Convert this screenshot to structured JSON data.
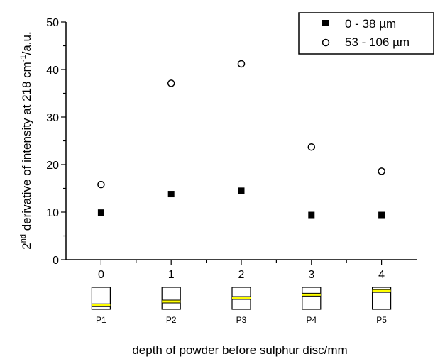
{
  "chart_data": {
    "type": "scatter",
    "xlabel": "depth of powder before sulphur disc/mm",
    "ylabel": {
      "prefix": "2",
      "sup1": "nd",
      "mid": " derivative of intensity at 218 cm",
      "sup2": "-1",
      "suffix": "/a.u."
    },
    "xlim": [
      -0.5,
      4.5
    ],
    "ylim": [
      0,
      50
    ],
    "x_ticks": [
      "0",
      "1",
      "2",
      "3",
      "4"
    ],
    "y_ticks": [
      "0",
      "10",
      "20",
      "30",
      "40",
      "50"
    ],
    "grid": false,
    "legend_position": "top-right",
    "series": [
      {
        "name": "0 - 38 µm",
        "marker": "filled-square",
        "color": "#000000",
        "x": [
          0,
          1,
          2,
          3,
          4
        ],
        "y": [
          9.9,
          13.8,
          14.5,
          9.4,
          9.4
        ]
      },
      {
        "name": "53 - 106 µm",
        "marker": "open-circle",
        "color": "#000000",
        "x": [
          0,
          1,
          2,
          3,
          4
        ],
        "y": [
          15.8,
          37.1,
          41.2,
          23.7,
          18.6
        ]
      }
    ],
    "position_diagrams": [
      {
        "label": "P1",
        "x": 0,
        "band_depth": 0.75
      },
      {
        "label": "P2",
        "x": 1,
        "band_depth": 0.58
      },
      {
        "label": "P3",
        "x": 2,
        "band_depth": 0.42
      },
      {
        "label": "P4",
        "x": 3,
        "band_depth": 0.27
      },
      {
        "label": "P5",
        "x": 4,
        "band_depth": 0.1
      }
    ],
    "band_color": "#ffff00"
  }
}
